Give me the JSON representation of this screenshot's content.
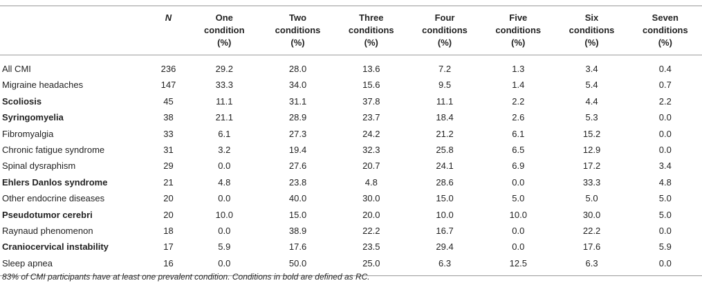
{
  "table": {
    "headers": [
      {
        "lines": [
          ""
        ]
      },
      {
        "lines": [
          "N"
        ]
      },
      {
        "lines": [
          "One",
          "condition",
          "(%)"
        ]
      },
      {
        "lines": [
          "Two",
          "conditions",
          "(%)"
        ]
      },
      {
        "lines": [
          "Three",
          "conditions",
          "(%)"
        ]
      },
      {
        "lines": [
          "Four",
          "conditions",
          "(%)"
        ]
      },
      {
        "lines": [
          "Five",
          "conditions",
          "(%)"
        ]
      },
      {
        "lines": [
          "Six",
          "conditions",
          "(%)"
        ]
      },
      {
        "lines": [
          "Seven",
          "conditions",
          "(%)"
        ]
      }
    ],
    "rows": [
      {
        "label": "All CMI",
        "bold": false,
        "cells": [
          "236",
          "29.2",
          "28.0",
          "13.6",
          "7.2",
          "1.3",
          "3.4",
          "0.4"
        ]
      },
      {
        "label": "Migraine headaches",
        "bold": false,
        "cells": [
          "147",
          "33.3",
          "34.0",
          "15.6",
          "9.5",
          "1.4",
          "5.4",
          "0.7"
        ]
      },
      {
        "label": "Scoliosis",
        "bold": true,
        "cells": [
          "45",
          "11.1",
          "31.1",
          "37.8",
          "11.1",
          "2.2",
          "4.4",
          "2.2"
        ]
      },
      {
        "label": "Syringomyelia",
        "bold": true,
        "cells": [
          "38",
          "21.1",
          "28.9",
          "23.7",
          "18.4",
          "2.6",
          "5.3",
          "0.0"
        ]
      },
      {
        "label": "Fibromyalgia",
        "bold": false,
        "cells": [
          "33",
          "6.1",
          "27.3",
          "24.2",
          "21.2",
          "6.1",
          "15.2",
          "0.0"
        ]
      },
      {
        "label": "Chronic fatigue syndrome",
        "bold": false,
        "cells": [
          "31",
          "3.2",
          "19.4",
          "32.3",
          "25.8",
          "6.5",
          "12.9",
          "0.0"
        ]
      },
      {
        "label": "Spinal dysraphism",
        "bold": false,
        "cells": [
          "29",
          "0.0",
          "27.6",
          "20.7",
          "24.1",
          "6.9",
          "17.2",
          "3.4"
        ]
      },
      {
        "label": "Ehlers Danlos syndrome",
        "bold": true,
        "cells": [
          "21",
          "4.8",
          "23.8",
          "4.8",
          "28.6",
          "0.0",
          "33.3",
          "4.8"
        ]
      },
      {
        "label": "Other endocrine diseases",
        "bold": false,
        "cells": [
          "20",
          "0.0",
          "40.0",
          "30.0",
          "15.0",
          "5.0",
          "5.0",
          "5.0"
        ]
      },
      {
        "label": "Pseudotumor cerebri",
        "bold": true,
        "cells": [
          "20",
          "10.0",
          "15.0",
          "20.0",
          "10.0",
          "10.0",
          "30.0",
          "5.0"
        ]
      },
      {
        "label": "Raynaud phenomenon",
        "bold": false,
        "cells": [
          "18",
          "0.0",
          "38.9",
          "22.2",
          "16.7",
          "0.0",
          "22.2",
          "0.0"
        ]
      },
      {
        "label": "Craniocervical instability",
        "bold": true,
        "cells": [
          "17",
          "5.9",
          "17.6",
          "23.5",
          "29.4",
          "0.0",
          "17.6",
          "5.9"
        ]
      },
      {
        "label": "Sleep apnea",
        "bold": false,
        "cells": [
          "16",
          "0.0",
          "50.0",
          "25.0",
          "6.3",
          "12.5",
          "6.3",
          "0.0"
        ]
      }
    ]
  },
  "footnote": "83% of CMI participants have at least one prevalent condition. Conditions in bold are defined as RC."
}
